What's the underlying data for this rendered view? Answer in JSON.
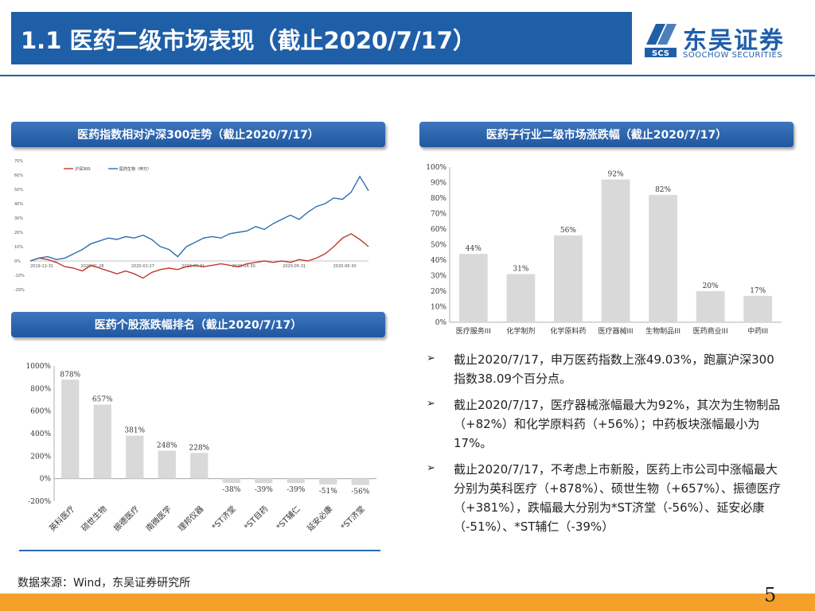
{
  "header": {
    "title": "1.1 医药二级市场表现（截止2020/7/17）"
  },
  "logo": {
    "cn": "东吴证券",
    "en": "SOOCHOW SECURITIES",
    "mark_text": "SCS"
  },
  "panels": {
    "trend": "医药指数相对沪深300走势（截止2020/7/17）",
    "sub": "医药子行业二级市场涨跌幅（截止2020/7/17）",
    "stocks": "医药个股涨跌幅排名（截止2020/7/17）"
  },
  "chart_data": [
    {
      "type": "line",
      "legend": [
        "沪深300",
        "医药生物（申万）"
      ],
      "y_ticks": [
        "70%",
        "60%",
        "50%",
        "40%",
        "30%",
        "20%",
        "10%",
        "0%",
        "-10%",
        "-20%"
      ],
      "x_ticks": [
        "2019-12-31",
        "2020-01-28",
        "2020-02-27",
        "2020-03-31",
        "2020-04-30",
        "2020-05-31",
        "2020-06-30"
      ],
      "ylim": [
        -20,
        70
      ],
      "series": [
        {
          "name": "沪深300",
          "color": "#c0392b",
          "values": [
            0,
            2,
            1,
            -1,
            -4,
            -5,
            -7,
            -3,
            -5,
            -7,
            -9,
            -7,
            -9,
            -12,
            -8,
            -6,
            -5,
            -6,
            -4,
            -3,
            -4,
            -3,
            -2,
            -3,
            -4,
            -2,
            -1,
            0,
            -1,
            0,
            -1,
            1,
            0,
            2,
            5,
            10,
            16,
            19,
            15,
            10
          ]
        },
        {
          "name": "医药生物（申万）",
          "color": "#2e6db4",
          "values": [
            0,
            2,
            3,
            1,
            2,
            5,
            8,
            12,
            14,
            16,
            15,
            17,
            16,
            18,
            15,
            10,
            8,
            3,
            10,
            13,
            16,
            17,
            16,
            19,
            20,
            21,
            24,
            22,
            26,
            29,
            32,
            29,
            34,
            38,
            40,
            44,
            43,
            48,
            59,
            49
          ]
        }
      ]
    },
    {
      "type": "bar",
      "categories": [
        "医疗服务III",
        "化学制剂",
        "化学原料药",
        "医疗器械III",
        "生物制品III",
        "医药商业III",
        "中药III"
      ],
      "values": [
        44,
        31,
        56,
        92,
        82,
        20,
        17
      ],
      "value_labels": [
        "44%",
        "31%",
        "56%",
        "92%",
        "82%",
        "20%",
        "17%"
      ],
      "y_ticks": [
        "100%",
        "90%",
        "80%",
        "70%",
        "60%",
        "50%",
        "40%",
        "30%",
        "20%",
        "10%",
        "0%"
      ],
      "ylim": [
        0,
        100
      ]
    },
    {
      "type": "bar",
      "categories": [
        "英科医疗",
        "硕世生物",
        "振德医疗",
        "南微医学",
        "理邦仪器",
        "*ST济堂",
        "*ST目药",
        "*ST辅仁",
        "延安必康",
        "*ST济堂"
      ],
      "values": [
        878,
        657,
        381,
        248,
        228,
        -38,
        -39,
        -39,
        -51,
        -56
      ],
      "value_labels": [
        "878%",
        "657%",
        "381%",
        "248%",
        "228%",
        "-38%",
        "-39%",
        "-39%",
        "-51%",
        "-56%"
      ],
      "y_ticks": [
        "1000%",
        "800%",
        "600%",
        "400%",
        "200%",
        "0%",
        "-200%"
      ],
      "ylim": [
        -200,
        1000
      ]
    }
  ],
  "bullets": [
    "截止2020/7/17，申万医药指数上涨49.03%，跑赢沪深300指数38.09个百分点。",
    "截止2020/7/17，医疗器械涨幅最大为92%，其次为生物制品（+82%）和化学原料药（+56%）；中药板块涨幅最小为17%。",
    "截止2020/7/17，不考虑上市新股，医药上市公司中涨幅最大分别为英科医疗（+878%）、硕世生物（+657%）、振德医疗（+381%），跌幅最大分别为*ST济堂（-56%）、延安必康（-51%）、*ST辅仁（-39%）"
  ],
  "source": "数据来源：Wind，东吴证券研究所",
  "page_number": "5"
}
